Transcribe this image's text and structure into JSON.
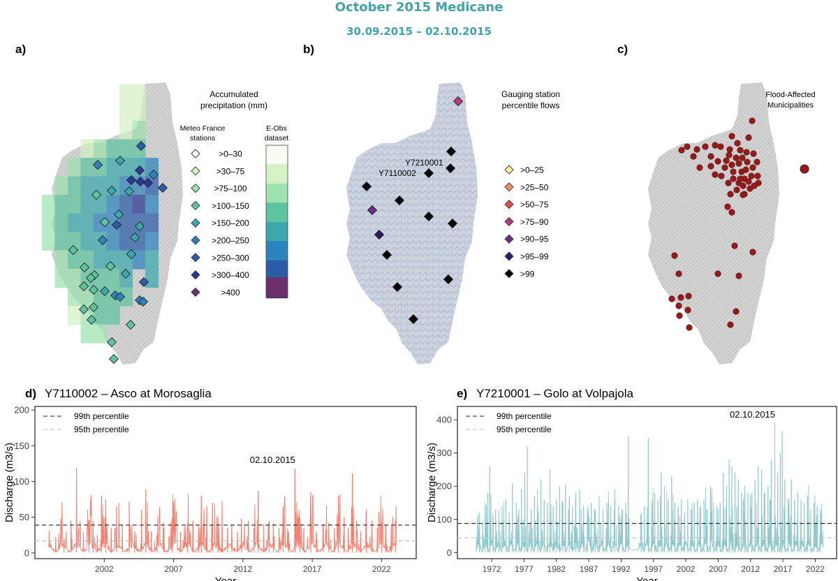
{
  "title": "October 2015 Medicane",
  "subtitle": "30.09.2015 – 02.10.2015",
  "colors": {
    "title": "#3fa3a8",
    "asco_line": "#f08070",
    "golo_line": "#90c8cc",
    "flood_dot": "#921b1b",
    "map_land": "#d6d6d6",
    "map_river_land": "#c9d0dc"
  },
  "panel_a": {
    "label": "a)",
    "legend_title_line1": "Accumulated",
    "legend_title_line2": "precipitation (mm)",
    "stations_header_line1": "Meteo France",
    "stations_header_line2": "stations",
    "eobs_header_line1": "E-Obs",
    "eobs_header_line2": "dataset",
    "classes": [
      {
        "label": ">0–30",
        "color": "#f7fbf0"
      },
      {
        "label": ">30–75",
        "color": "#d4f2c4"
      },
      {
        "label": ">75–100",
        "color": "#9ee2b0"
      },
      {
        "label": ">100–150",
        "color": "#5ec4a0"
      },
      {
        "label": ">150–200",
        "color": "#3aa8ad"
      },
      {
        "label": ">200–250",
        "color": "#2b84bc"
      },
      {
        "label": ">250–300",
        "color": "#2a5ca8"
      },
      {
        "label": ">300–400",
        "color": "#2a3694"
      },
      {
        "label": ">400",
        "color": "#6b2f6b"
      }
    ]
  },
  "panel_b": {
    "label": "b)",
    "legend_title_line1": "Gauging station",
    "legend_title_line2": "percentile flows",
    "station_label_1": "Y7210001",
    "station_label_2": "Y7110002",
    "classes": [
      {
        "label": ">0–25",
        "color": "#fbf1a6"
      },
      {
        "label": ">25–50",
        "color": "#f5905a"
      },
      {
        "label": ">50–75",
        "color": "#e0504a"
      },
      {
        "label": ">75–90",
        "color": "#b63a80"
      },
      {
        "label": ">90–95",
        "color": "#6e2a8c"
      },
      {
        "label": ">95–99",
        "color": "#2a1c6a"
      },
      {
        "label": ">99",
        "color": "#050505"
      }
    ]
  },
  "panel_c": {
    "label": "c)",
    "legend_title_line1": "Flood-Affected",
    "legend_title_line2": "Municipalities"
  },
  "chart_data": [
    {
      "type": "line",
      "panel": "d)",
      "station": "Y7110002",
      "title": "Y7110002 – Asco at Morosaglia",
      "xlabel": "Year",
      "ylabel": "Discharge (m3/s)",
      "xlim": [
        1997,
        2024.5
      ],
      "ylim": [
        -8,
        205
      ],
      "xticks": [
        2002,
        2007,
        2012,
        2017,
        2022
      ],
      "yticks": [
        0,
        50,
        100,
        150,
        200
      ],
      "start_year": 1998,
      "end_year": 2023.1,
      "p99": 39,
      "p95": 17,
      "legend": [
        "99th percentile",
        "95th percentile"
      ],
      "annotation": {
        "text": "02.10.2015",
        "year": 2015.75,
        "value": 118
      },
      "peaks": [
        [
          1998.5,
          22
        ],
        [
          1999.1,
          20
        ],
        [
          1999.6,
          45
        ],
        [
          2000.0,
          119
        ],
        [
          2000.5,
          30
        ],
        [
          2000.9,
          38
        ],
        [
          2001.2,
          45
        ],
        [
          2001.5,
          25
        ],
        [
          2001.8,
          80
        ],
        [
          2002.1,
          75
        ],
        [
          2002.5,
          35
        ],
        [
          2002.9,
          65
        ],
        [
          2003.3,
          40
        ],
        [
          2003.8,
          72
        ],
        [
          2004.2,
          30
        ],
        [
          2004.7,
          60
        ],
        [
          2005.0,
          89
        ],
        [
          2005.4,
          30
        ],
        [
          2005.8,
          25
        ],
        [
          2006.3,
          35
        ],
        [
          2006.9,
          48
        ],
        [
          2007.5,
          30
        ],
        [
          2008.0,
          42
        ],
        [
          2008.4,
          45
        ],
        [
          2008.8,
          38
        ],
        [
          2009.0,
          80
        ],
        [
          2009.4,
          65
        ],
        [
          2009.8,
          70
        ],
        [
          2010.2,
          50
        ],
        [
          2010.5,
          73
        ],
        [
          2010.9,
          35
        ],
        [
          2011.2,
          40
        ],
        [
          2011.6,
          30
        ],
        [
          2011.9,
          48
        ],
        [
          2012.4,
          45
        ],
        [
          2012.8,
          35
        ],
        [
          2013.1,
          87
        ],
        [
          2013.5,
          40
        ],
        [
          2013.9,
          45
        ],
        [
          2014.2,
          42
        ],
        [
          2014.6,
          35
        ],
        [
          2014.9,
          65
        ],
        [
          2015.3,
          30
        ],
        [
          2015.75,
          118
        ],
        [
          2016.1,
          50
        ],
        [
          2016.4,
          35
        ],
        [
          2016.9,
          85
        ],
        [
          2017.3,
          30
        ],
        [
          2017.8,
          40
        ],
        [
          2018.2,
          42
        ],
        [
          2018.6,
          35
        ],
        [
          2018.9,
          80
        ],
        [
          2019.3,
          50
        ],
        [
          2019.6,
          35
        ],
        [
          2019.9,
          111
        ],
        [
          2020.2,
          45
        ],
        [
          2020.5,
          30
        ],
        [
          2020.9,
          60
        ],
        [
          2021.3,
          45
        ],
        [
          2021.7,
          35
        ],
        [
          2022.0,
          42
        ],
        [
          2022.3,
          40
        ],
        [
          2022.7,
          38
        ],
        [
          2023.0,
          45
        ]
      ]
    },
    {
      "type": "line",
      "panel": "e)",
      "station": "Y7210001",
      "title": "Y7210001 – Golo at Volpajola",
      "xlabel": "Year",
      "ylabel": "Discharge (m3/s)",
      "xlim": [
        1966.7,
        2025.3
      ],
      "ylim": [
        -18,
        440
      ],
      "xticks": [
        1972,
        1977,
        1982,
        1987,
        1992,
        1997,
        2002,
        2007,
        2012,
        2017,
        2022
      ],
      "yticks": [
        0,
        100,
        200,
        300,
        400
      ],
      "start_year": 1969.5,
      "end_year": 2023.2,
      "gap": [
        1993.3,
        1994.6
      ],
      "p99": 88,
      "p95": 45,
      "legend": [
        "99th percentile",
        "95th percentile"
      ],
      "annotation": {
        "text": "02.10.2015",
        "year": 2015.75,
        "value": 390
      },
      "peaks": [
        [
          1970.1,
          120
        ],
        [
          1970.6,
          90
        ],
        [
          1971.0,
          150
        ],
        [
          1971.4,
          180
        ],
        [
          1971.7,
          260
        ],
        [
          1972.2,
          110
        ],
        [
          1972.6,
          130
        ],
        [
          1973.1,
          100
        ],
        [
          1973.6,
          140
        ],
        [
          1974.2,
          160
        ],
        [
          1974.7,
          120
        ],
        [
          1975.2,
          210
        ],
        [
          1975.8,
          150
        ],
        [
          1976.2,
          130
        ],
        [
          1976.6,
          190
        ],
        [
          1977.1,
          240
        ],
        [
          1977.5,
          320
        ],
        [
          1978.1,
          130
        ],
        [
          1978.6,
          170
        ],
        [
          1979.1,
          140
        ],
        [
          1979.6,
          220
        ],
        [
          1980.1,
          160
        ],
        [
          1980.6,
          150
        ],
        [
          1981.0,
          250
        ],
        [
          1981.5,
          140
        ],
        [
          1982.0,
          160
        ],
        [
          1982.5,
          200
        ],
        [
          1983.0,
          150
        ],
        [
          1983.4,
          205
        ],
        [
          1984.0,
          170
        ],
        [
          1984.5,
          140
        ],
        [
          1985.0,
          120
        ],
        [
          1985.6,
          190
        ],
        [
          1986.2,
          140
        ],
        [
          1986.8,
          130
        ],
        [
          1987.4,
          150
        ],
        [
          1988.0,
          125
        ],
        [
          1988.6,
          170
        ],
        [
          1989.2,
          130
        ],
        [
          1989.8,
          150
        ],
        [
          1990.4,
          140
        ],
        [
          1991.0,
          160
        ],
        [
          1991.6,
          140
        ],
        [
          1992.2,
          130
        ],
        [
          1992.7,
          150
        ],
        [
          1993.1,
          350
        ],
        [
          1995.1,
          120
        ],
        [
          1995.6,
          140
        ],
        [
          1996.2,
          345
        ],
        [
          1996.7,
          150
        ],
        [
          1997.2,
          180
        ],
        [
          1997.7,
          160
        ],
        [
          1998.2,
          240
        ],
        [
          1998.7,
          200
        ],
        [
          1999.3,
          160
        ],
        [
          1999.8,
          230
        ],
        [
          2000.3,
          150
        ],
        [
          2000.8,
          140
        ],
        [
          2001.3,
          160
        ],
        [
          2001.8,
          120
        ],
        [
          2002.3,
          160
        ],
        [
          2002.8,
          130
        ],
        [
          2003.3,
          150
        ],
        [
          2003.8,
          160
        ],
        [
          2004.3,
          140
        ],
        [
          2004.8,
          160
        ],
        [
          2005.3,
          130
        ],
        [
          2005.8,
          200
        ],
        [
          2006.3,
          150
        ],
        [
          2006.8,
          140
        ],
        [
          2007.3,
          150
        ],
        [
          2007.8,
          240
        ],
        [
          2008.3,
          200
        ],
        [
          2008.7,
          280
        ],
        [
          2009.1,
          260
        ],
        [
          2009.6,
          240
        ],
        [
          2010.1,
          220
        ],
        [
          2010.6,
          180
        ],
        [
          2011.1,
          200
        ],
        [
          2011.6,
          180
        ],
        [
          2012.2,
          180
        ],
        [
          2012.7,
          220
        ],
        [
          2013.2,
          260
        ],
        [
          2013.7,
          250
        ],
        [
          2014.2,
          180
        ],
        [
          2014.7,
          200
        ],
        [
          2015.2,
          280
        ],
        [
          2015.75,
          390
        ],
        [
          2016.2,
          240
        ],
        [
          2016.6,
          300
        ],
        [
          2016.9,
          365
        ],
        [
          2017.3,
          220
        ],
        [
          2017.8,
          160
        ],
        [
          2018.3,
          220
        ],
        [
          2018.8,
          160
        ],
        [
          2019.3,
          180
        ],
        [
          2019.8,
          160
        ],
        [
          2020.3,
          150
        ],
        [
          2020.8,
          170
        ],
        [
          2021.3,
          130
        ],
        [
          2021.8,
          150
        ],
        [
          2022.3,
          140
        ],
        [
          2022.8,
          130
        ]
      ]
    }
  ]
}
